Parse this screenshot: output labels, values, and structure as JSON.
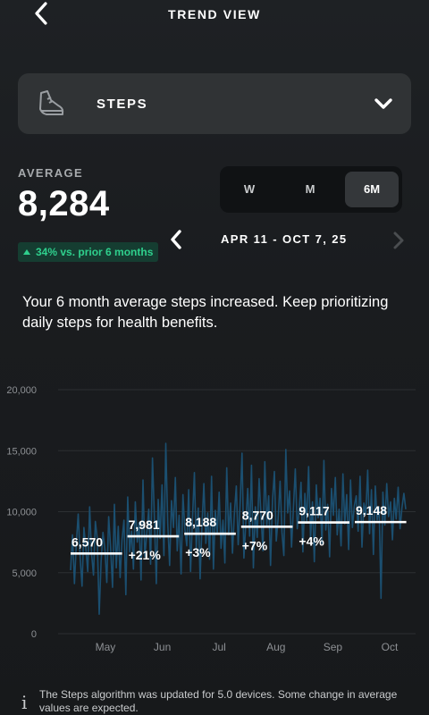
{
  "header": {
    "title": "TREND VIEW",
    "back_icon": "chevron-left-icon"
  },
  "metric_selector": {
    "label": "STEPS",
    "icon": "shoe-icon",
    "dropdown_icon": "chevron-down-icon"
  },
  "summary": {
    "label": "AVERAGE",
    "value": "8,284",
    "change_text": "34% vs. prior 6 months",
    "change_color": "#2fd08d"
  },
  "range_tabs": [
    {
      "label": "W",
      "selected": false
    },
    {
      "label": "M",
      "selected": false
    },
    {
      "label": "6M",
      "selected": true
    }
  ],
  "date_range": {
    "label": "APR 11 - OCT 7, 25"
  },
  "insight": "Your 6 month average steps increased. Keep prioritizing daily steps for health benefits.",
  "chart_data": {
    "type": "line",
    "title": "",
    "xlabel": "",
    "ylabel": "",
    "ylim": [
      0,
      20000
    ],
    "y_ticks": [
      "0",
      "5,000",
      "10,000",
      "15,000",
      "20,000"
    ],
    "x_ticks": [
      "May",
      "Jun",
      "Jul",
      "Aug",
      "Sep",
      "Oct"
    ],
    "grid": true,
    "line_color": "#1b4f70",
    "monthly": [
      {
        "label": "6,570",
        "value": 6570,
        "change": ""
      },
      {
        "label": "7,981",
        "value": 7981,
        "change": "+21%"
      },
      {
        "label": "8,188",
        "value": 8188,
        "change": "+3%"
      },
      {
        "label": "8,770",
        "value": 8770,
        "change": "+7%"
      },
      {
        "label": "9,117",
        "value": 9117,
        "change": "+4%"
      },
      {
        "label": "9,148",
        "value": 9148,
        "change": ""
      }
    ],
    "daily_steps": [
      5200,
      8100,
      4100,
      7400,
      9800,
      6200,
      3900,
      8700,
      7000,
      5100,
      10400,
      6600,
      4800,
      9200,
      7800,
      1600,
      5900,
      8300,
      6900,
      4200,
      9600,
      7100,
      3800,
      10600,
      5400,
      8800,
      4600,
      7700,
      9300,
      3200,
      11200,
      6700,
      8400,
      5300,
      10800,
      7500,
      9100,
      4400,
      12600,
      6300,
      8200,
      10200,
      5700,
      14400,
      9400,
      4100,
      11000,
      7800,
      12200,
      6400,
      15600,
      9000,
      5600,
      10900,
      8700,
      12800,
      6800,
      9700,
      4900,
      11400,
      8600,
      7200,
      11800,
      5100,
      9500,
      13200,
      6900,
      10300,
      4500,
      8900,
      12300,
      7400,
      9900,
      6100,
      12900,
      5300,
      10100,
      8200,
      11600,
      7000,
      9300,
      5800,
      13600,
      8100,
      10700,
      6600,
      9800,
      12100,
      7300,
      10500,
      14800,
      6200,
      9100,
      11900,
      8000,
      13800,
      5400,
      10400,
      7900,
      12700,
      9600,
      6800,
      14100,
      8800,
      11300,
      5600,
      10900,
      13300,
      7600,
      9400,
      12500,
      8300,
      6400,
      15100,
      9900,
      11700,
      7100,
      10300,
      13500,
      8600,
      10100,
      12400,
      6700,
      11500,
      9200,
      13700,
      7800,
      10800,
      5900,
      12200,
      9500,
      11100,
      7400,
      14200,
      8500,
      10600,
      6300,
      11900,
      9700,
      12800,
      8100,
      10200,
      7200,
      13100,
      9000,
      11400,
      6900,
      12600,
      8700,
      10500,
      11300,
      8400,
      12900,
      7100,
      10700,
      9800,
      13400,
      8200,
      11800,
      6500,
      12100,
      9300,
      10400,
      2900,
      11600,
      8900,
      12300,
      9600,
      10800,
      7700,
      11100,
      9400,
      12000,
      8600,
      10300,
      11500,
      10200
    ]
  },
  "footnote": {
    "icon": "info-icon",
    "text": "The Steps algorithm was updated for 5.0 devices. Some change in average values are expected."
  }
}
